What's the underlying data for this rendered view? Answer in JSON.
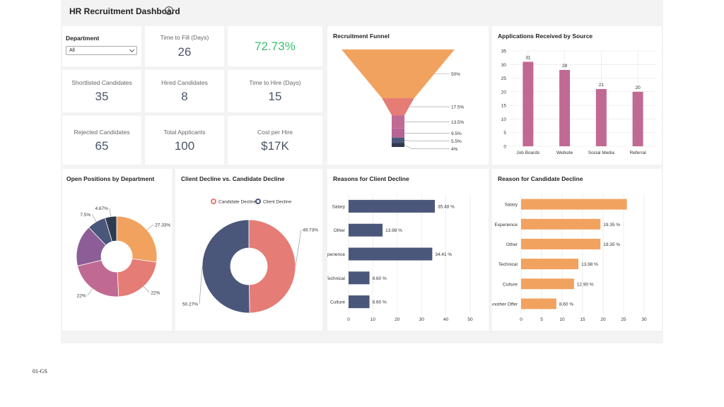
{
  "header": {
    "title": "HR Recruitment Dashboard",
    "info_icon": "info-icon"
  },
  "filter": {
    "label": "Department",
    "value": "All"
  },
  "kpis": {
    "time_to_fill": {
      "label": "Time to Fill (Days)",
      "value": "26"
    },
    "fill_rate": {
      "value": "72.73%",
      "color": "#3cc06f"
    },
    "shortlisted": {
      "label": "Shortlisted Candidates",
      "value": "35"
    },
    "hired": {
      "label": "Hired Candidates",
      "value": "8"
    },
    "time_to_hire": {
      "label": "Time to Hire (Days)",
      "value": "15"
    },
    "rejected": {
      "label": "Rejected Candidates",
      "value": "65"
    },
    "total_applicants": {
      "label": "Total Applicants",
      "value": "100"
    },
    "cost_per_hire": {
      "label": "Cost per Hire",
      "value": "$17K"
    }
  },
  "panels": {
    "funnel": "Recruitment Funnel",
    "source": "Applications Received by Source",
    "open_positions": "Open Positions by Department",
    "decline_compare": "Client Decline vs. Candidate Decline",
    "client_reasons": "Reasons for Client Decline",
    "candidate_reasons": "Reason for Candidate Decline"
  },
  "footnote": "01-GS",
  "chart_data": [
    {
      "id": "funnel",
      "type": "funnel",
      "title": "Recruitment Funnel",
      "values": [
        50,
        17.5,
        13.5,
        9.5,
        5.5,
        4
      ],
      "labels": [
        "50%",
        "17.5%",
        "13.5%",
        "9.5%",
        "5.5%",
        "4%"
      ],
      "colors": [
        "#f2a25f",
        "#e57c76",
        "#c06a93",
        "#b56495",
        "#4b577a",
        "#2e3b4e"
      ]
    },
    {
      "id": "source",
      "type": "bar",
      "title": "Applications Received by Source",
      "categories": [
        "Job Boards",
        "Website",
        "Social Media",
        "Referral"
      ],
      "values": [
        31,
        28,
        21,
        20
      ],
      "ylim": [
        0,
        35
      ],
      "yticks": [
        0,
        5,
        10,
        15,
        20,
        25,
        30,
        35
      ],
      "color": "#c06a93",
      "grid": true
    },
    {
      "id": "open_positions",
      "type": "pie",
      "title": "Open Positions by Department",
      "values": [
        27.33,
        22,
        22,
        16.67,
        7.5,
        4.67
      ],
      "labels": [
        "27.33%",
        "22%",
        "22%",
        "",
        "7.5%",
        "4.67%"
      ],
      "colors": [
        "#f2a25f",
        "#e57c76",
        "#c06a93",
        "#8c5d96",
        "#4b577a",
        "#2e3b4e"
      ]
    },
    {
      "id": "decline_compare",
      "type": "pie",
      "title": "Client Decline vs. Candidate Decline",
      "series": [
        {
          "name": "Candidate Decline",
          "value": 49.73,
          "label": "49.73%",
          "color": "#e57c76"
        },
        {
          "name": "Client Decline",
          "value": 50.27,
          "label": "50.27%",
          "color": "#4b577a"
        }
      ],
      "legend": "top"
    },
    {
      "id": "client_reasons",
      "type": "bar",
      "orientation": "horizontal",
      "title": "Reasons for Client Decline",
      "categories": [
        "Salary",
        "Other",
        "Experience",
        "Technical",
        "Culture"
      ],
      "values": [
        35.48,
        13.98,
        34.41,
        8.6,
        8.6
      ],
      "labels": [
        "35.48 %",
        "13.98 %",
        "34.41 %",
        "8.60 %",
        "8.60 %"
      ],
      "xlim": [
        0,
        50
      ],
      "xticks": [
        "0",
        "10",
        "20",
        "30",
        "40",
        "50"
      ],
      "color": "#4b577a",
      "grid": true
    },
    {
      "id": "candidate_reasons",
      "type": "bar",
      "orientation": "horizontal",
      "title": "Reason for Candidate Decline",
      "categories": [
        "Salary",
        "Experience",
        "Other",
        "Technical",
        "Culture",
        "Another Offer"
      ],
      "values": [
        25.8,
        19.35,
        19.35,
        13.98,
        12.9,
        8.6
      ],
      "labels": [
        "",
        "19.35 %",
        "19.35 %",
        "13.98 %",
        "12.90 %",
        "8.60 %"
      ],
      "xlim": [
        0,
        30
      ],
      "xticks": [
        "0",
        "5",
        "10",
        "15",
        "20",
        "25",
        "30"
      ],
      "color": "#f2a25f",
      "grid": true
    }
  ]
}
